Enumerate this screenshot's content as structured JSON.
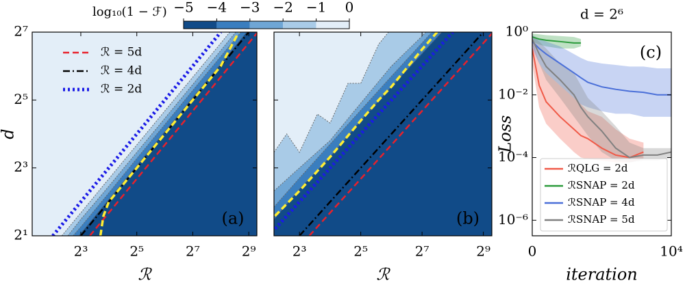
{
  "colorbar": {
    "label": "log₁₀(1 − ℱ)",
    "colors": [
      "#114b88",
      "#3a7ebf",
      "#6fa6d5",
      "#a9cbe7",
      "#e3eef8"
    ],
    "ticks": [
      {
        "value": -5,
        "label": "−5"
      },
      {
        "value": -4,
        "label": "−4"
      },
      {
        "value": -3,
        "label": "−3"
      },
      {
        "value": -2,
        "label": "−2"
      },
      {
        "value": -1,
        "label": "−1"
      },
      0
    ],
    "lim": [
      -5,
      0
    ]
  },
  "chart_data": [
    {
      "type": "contour",
      "panel_label": "(a)",
      "xlabel": "ℛ",
      "ylabel": "d",
      "xscale": "log",
      "yscale": "log",
      "xlim": [
        2.4,
        626
      ],
      "ylim": [
        2,
        128
      ],
      "xticks": [
        {
          "value": 8,
          "label": "2³"
        },
        {
          "value": 32,
          "label": "2⁵"
        },
        {
          "value": 128,
          "label": "2⁷"
        },
        {
          "value": 512,
          "label": "2⁹"
        }
      ],
      "yticks": [
        {
          "value": 2,
          "label": "2¹"
        },
        {
          "value": 8,
          "label": "2³"
        },
        {
          "value": 32,
          "label": "2⁵"
        },
        {
          "value": 128,
          "label": "2⁷"
        }
      ],
      "background": "#e3eef8",
      "legend": "upper left",
      "regions": [
        {
          "color": "#a9cbe7",
          "R": [
            5,
            8,
            16,
            32,
            64,
            128,
            256,
            320
          ],
          "d": [
            2,
            3.2,
            6.4,
            12.8,
            25.6,
            51,
            102,
            128
          ]
        },
        {
          "color": "#6fa6d5",
          "R": [
            5.8,
            8,
            16,
            32,
            64,
            128,
            256,
            371
          ],
          "d": [
            2,
            2.8,
            5.5,
            11,
            22,
            44,
            88,
            128
          ]
        },
        {
          "color": "#3a7ebf",
          "R": [
            6.6,
            8,
            16,
            32,
            64,
            128,
            256,
            422
          ],
          "d": [
            2,
            2.4,
            4.8,
            9.7,
            19.4,
            39,
            78,
            128
          ]
        },
        {
          "color": "#114b88",
          "R": [
            7.6,
            8,
            16,
            32,
            64,
            128,
            256,
            486
          ],
          "d": [
            2,
            2.1,
            4.2,
            8.4,
            16.8,
            33.7,
            67,
            128
          ]
        }
      ],
      "series": [
        {
          "name": "ℛ = 5d",
          "color": "#e8212b",
          "dash": "dashed",
          "x": [
            10,
            640
          ],
          "values": [
            2,
            128
          ]
        },
        {
          "name": "ℛ = 4d",
          "color": "#000000",
          "dash": "dashdot",
          "x": [
            8,
            512
          ],
          "values": [
            2,
            128
          ]
        },
        {
          "name": "ℛ = 2d",
          "color": "#1a1ae6",
          "dash": "dotted",
          "x": [
            4,
            256
          ],
          "values": [
            2,
            128
          ]
        },
        {
          "color": "#ffee33",
          "dash": "dashed",
          "x": [
            13,
            14,
            16,
            20,
            24,
            32,
            64,
            128,
            256,
            400
          ],
          "values": [
            2,
            3,
            4,
            5,
            6,
            8,
            16,
            32,
            64,
            128
          ]
        }
      ]
    },
    {
      "type": "contour",
      "panel_label": "(b)",
      "xlabel": "ℛ",
      "xscale": "log",
      "yscale": "log",
      "xlim": [
        4.5,
        620
      ],
      "ylim": [
        2,
        128
      ],
      "xticks": [
        {
          "value": 8,
          "label": "2³"
        },
        {
          "value": 32,
          "label": "2⁵"
        },
        {
          "value": 128,
          "label": "2⁷"
        },
        {
          "value": 512,
          "label": "2⁹"
        }
      ],
      "yticks": [
        2,
        8,
        32,
        128
      ],
      "ytick_labels": false,
      "background": "#e3eef8",
      "regions": [
        {
          "color": "#a9cbe7",
          "R": [
            4.5,
            6,
            8,
            12,
            16,
            24,
            32,
            48,
            60
          ],
          "d": [
            11,
            16,
            11,
            24,
            20,
            45,
            45,
            100,
            128
          ]
        },
        {
          "color": "#6fa6d5",
          "R": [
            4.5,
            8,
            16,
            32,
            64,
            128,
            140
          ],
          "d": [
            5,
            8,
            14,
            30,
            64,
            118,
            128
          ]
        },
        {
          "color": "#3a7ebf",
          "R": [
            4.5,
            8,
            16,
            32,
            64,
            160
          ],
          "d": [
            3.6,
            6.5,
            13,
            26,
            52,
            128
          ]
        },
        {
          "color": "#114b88",
          "R": [
            4.5,
            8,
            16,
            32,
            64,
            200
          ],
          "d": [
            2.8,
            5.2,
            10,
            21,
            42,
            128
          ]
        }
      ],
      "series": [
        {
          "color": "#e8212b",
          "dash": "dashed",
          "x": [
            10,
            640
          ],
          "values": [
            2,
            128
          ]
        },
        {
          "color": "#000000",
          "dash": "dashdot",
          "x": [
            8,
            512
          ],
          "values": [
            2,
            128
          ]
        },
        {
          "color": "#1a1ae6",
          "dash": "dotted",
          "x": [
            4,
            256
          ],
          "values": [
            2,
            128
          ]
        },
        {
          "color": "#ffee33",
          "dash": "dashed",
          "x": [
            4.6,
            8,
            16,
            32,
            48,
            64,
            128,
            180
          ],
          "values": [
            3,
            5,
            10,
            21,
            32,
            42,
            90,
            128
          ]
        }
      ]
    },
    {
      "type": "line",
      "title": "d = 2⁶",
      "panel_label": "(c)",
      "xlabel": "iteration",
      "ylabel": "Loss",
      "xscale": "linear",
      "yscale": "log",
      "xlim": [
        0,
        10000
      ],
      "ylim": [
        3.2e-07,
        1
      ],
      "xticks": [
        0,
        {
          "value": 10000,
          "label": "10⁴"
        }
      ],
      "yticks": [
        {
          "value": 1,
          "label": "10⁰"
        },
        {
          "value": 0.01,
          "label": "10⁻²"
        },
        {
          "value": 0.0001,
          "label": "10⁻⁴"
        },
        {
          "value": 1e-06,
          "label": "10⁻⁶"
        }
      ],
      "legend": "lower left",
      "x": [
        0,
        500,
        1000,
        2000,
        3000,
        3500,
        4000,
        5000,
        6000,
        7000,
        8000,
        9000,
        10000
      ],
      "series": [
        {
          "name": "ℛQLG = 2d",
          "color": "#f05a48",
          "values": [
            0.3,
            0.02,
            0.006,
            0.002,
            0.0008,
            0.0005,
            0.0004,
            0.0002,
            0.00012,
            0.0001,
            0.00015,
            null,
            null
          ],
          "lower": [
            0.1,
            0.004,
            0.0012,
            0.0004,
            0.00015,
            0.0001,
            9e-05,
            8e-05,
            7e-05,
            7e-05,
            9e-05,
            null,
            null
          ],
          "upper": [
            0.6,
            0.1,
            0.05,
            0.02,
            0.008,
            0.005,
            0.003,
            0.002,
            0.0008,
            0.0004,
            0.0003,
            null,
            null
          ]
        },
        {
          "name": "ℛSNAP = 2d",
          "color": "#2a9a3a",
          "values": [
            0.7,
            0.6,
            0.55,
            0.5,
            0.45,
            0.45,
            null,
            null,
            null,
            null,
            null,
            null,
            null
          ],
          "lower": [
            0.5,
            0.4,
            0.35,
            0.3,
            0.3,
            0.35,
            null,
            null,
            null,
            null,
            null,
            null,
            null
          ],
          "upper": [
            0.9,
            0.85,
            0.8,
            0.75,
            0.7,
            0.6,
            null,
            null,
            null,
            null,
            null,
            null,
            null
          ]
        },
        {
          "name": "ℛSNAP = 4d",
          "color": "#4a6fd8",
          "values": [
            0.5,
            0.3,
            0.2,
            0.1,
            0.05,
            0.035,
            0.025,
            0.018,
            0.015,
            0.013,
            0.012,
            0.01,
            0.01
          ],
          "lower": [
            0.3,
            0.1,
            0.05,
            0.02,
            0.008,
            0.005,
            0.004,
            0.003,
            0.0025,
            0.0025,
            0.002,
            0.002,
            0.002
          ],
          "upper": [
            0.8,
            0.6,
            0.5,
            0.35,
            0.2,
            0.15,
            0.12,
            0.1,
            0.09,
            0.08,
            0.08,
            0.07,
            0.07
          ]
        },
        {
          "name": "ℛSNAP = 5d",
          "color": "#808080",
          "values": [
            0.6,
            0.2,
            0.08,
            0.03,
            0.01,
            0.004,
            0.002,
            0.0007,
            0.0002,
            0.0001,
            0.00012,
            0.00012,
            0.00015
          ],
          "lower": [
            0.4,
            0.1,
            0.03,
            0.008,
            0.002,
            0.001,
            0.0005,
            0.00015,
            8e-05,
            7e-05,
            8e-05,
            8e-05,
            0.0001
          ],
          "upper": [
            0.8,
            0.5,
            0.3,
            0.1,
            0.05,
            0.02,
            0.008,
            0.003,
            0.001,
            0.0003,
            0.0002,
            0.0002,
            0.0002
          ]
        }
      ]
    }
  ]
}
